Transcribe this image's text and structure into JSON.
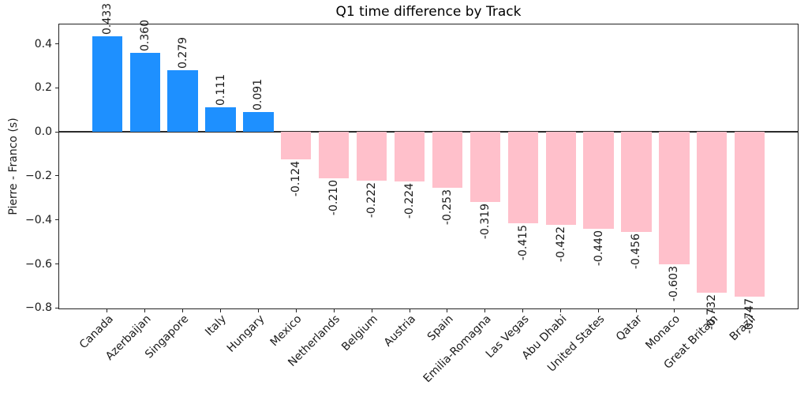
{
  "chart_data": {
    "type": "bar",
    "title": "Q1 time difference by Track",
    "ylabel": "Pierre - Franco (s)",
    "categories": [
      "Canada",
      "Azerbaijan",
      "Singapore",
      "Italy",
      "Hungary",
      "Mexico",
      "Netherlands",
      "Belgium",
      "Austria",
      "Spain",
      "Emilia-Romagna",
      "Las Vegas",
      "Abu Dhabi",
      "United States",
      "Qatar",
      "Monaco",
      "Great Britain",
      "Brazil"
    ],
    "values": [
      0.433,
      0.36,
      0.279,
      0.111,
      0.091,
      -0.124,
      -0.21,
      -0.222,
      -0.224,
      -0.253,
      -0.319,
      -0.415,
      -0.422,
      -0.44,
      -0.456,
      -0.603,
      -0.732,
      -0.747
    ],
    "bar_value_labels": [
      "0.433",
      "0.360",
      "0.279",
      "0.111",
      "0.091",
      "-0.124",
      "-0.210",
      "-0.222",
      "-0.224",
      "-0.253",
      "-0.319",
      "-0.415",
      "-0.422",
      "-0.440",
      "-0.456",
      "-0.603",
      "-0.732",
      "-0.747"
    ],
    "positive_color": "#1E90FF",
    "negative_color": "#FFC0CB",
    "text_color": "#1a1a1a",
    "yticks": {
      "values": [
        0.4,
        0.2,
        0.0,
        -0.2,
        -0.4,
        -0.6,
        -0.8
      ],
      "labels": [
        "0.4",
        "0.2",
        "0.0",
        "−0.2",
        "−0.4",
        "−0.6",
        "−0.8"
      ]
    },
    "ylim": [
      -0.806,
      0.492
    ],
    "xlim": [
      -1.29,
      18.29
    ],
    "bar_width_frac": 0.8,
    "value_label_rotation_deg": 90,
    "xtick_rotation_deg": 45,
    "grid": false,
    "legend": null,
    "zero_line": true
  }
}
